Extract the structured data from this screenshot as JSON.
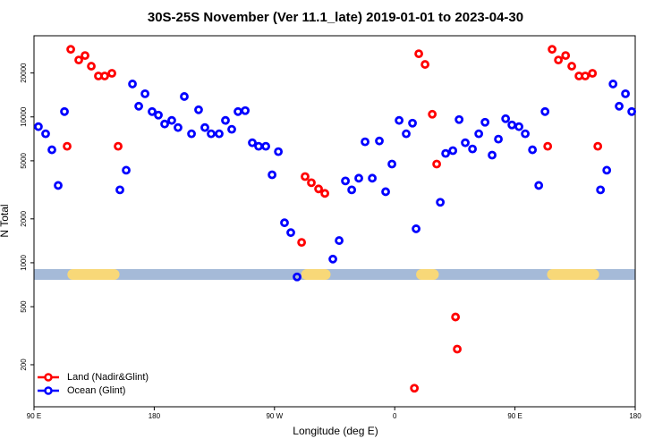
{
  "chart_data": {
    "type": "scatter",
    "title": "30S-25S November (Ver 11.1_late)   2019-01-01 to 2023-04-30",
    "x_label": "Longitude (deg E)",
    "y_label": "N Total",
    "log_y": true,
    "legend": "bottom-left",
    "xlim": [
      90,
      540
    ],
    "xticks": [
      {
        "value": 90,
        "label": "90 E"
      },
      {
        "value": 180,
        "label": "180"
      },
      {
        "value": 270,
        "label": "90 W"
      },
      {
        "value": 360,
        "label": "0"
      },
      {
        "value": 450,
        "label": "90 E"
      },
      {
        "value": 540,
        "label": "180"
      }
    ],
    "ylim": [
      103,
      36000
    ],
    "yticks": [
      200,
      500,
      1000,
      2000,
      5000,
      10000,
      20000
    ],
    "land_segments": [
      [
        115,
        154
      ],
      [
        290,
        312
      ],
      [
        376,
        393
      ],
      [
        474,
        513
      ]
    ],
    "band_color": "#a5bad8",
    "land_color": "#f8d878",
    "series": [
      {
        "name": "Land (Nadir&Glint)",
        "color": "#ff0000",
        "x": [
          114.8,
          117.5,
          123.5,
          128.2,
          132.9,
          138.2,
          142.9,
          148.3,
          153.0,
          290.3,
          292.9,
          297.6,
          303.0,
          307.7,
          374.7,
          378.0,
          382.7,
          388.1,
          391.4,
          405.5,
          406.8,
          474.5,
          477.8,
          482.5,
          487.9,
          492.5,
          497.9,
          502.6,
          508.0,
          512.0
        ],
        "values": [
          6290,
          29060,
          24550,
          26350,
          22270,
          19070,
          19070,
          19900,
          6290,
          1380,
          3900,
          3540,
          3210,
          2990,
          138,
          27100,
          22890,
          10430,
          4750,
          425,
          256,
          6290,
          29060,
          24550,
          26350,
          22270,
          19070,
          19070,
          19900,
          6290
        ]
      },
      {
        "name": "Ocean (Glint)",
        "color": "#0000ff",
        "x": [
          93.3,
          98.7,
          103.4,
          108.1,
          112.8,
          154.3,
          159.0,
          163.7,
          168.4,
          173.1,
          178.4,
          183.1,
          187.8,
          193.1,
          197.8,
          202.5,
          207.9,
          213.2,
          217.9,
          222.6,
          228.6,
          233.3,
          238.0,
          242.7,
          248.1,
          253.4,
          258.1,
          263.5,
          268.2,
          272.9,
          277.5,
          282.2,
          286.9,
          313.7,
          318.4,
          323.1,
          327.8,
          333.1,
          337.8,
          343.2,
          348.5,
          353.2,
          357.9,
          363.3,
          368.6,
          373.3,
          376.0,
          394.1,
          398.1,
          403.5,
          408.2,
          412.8,
          418.2,
          422.9,
          427.6,
          432.9,
          437.6,
          443.0,
          447.7,
          453.0,
          457.7,
          463.1,
          467.8,
          472.5,
          514.0,
          518.7,
          523.4,
          528.0,
          532.7,
          537.4
        ],
        "values": [
          8570,
          7660,
          5950,
          3390,
          10880,
          3160,
          4310,
          16820,
          11840,
          14410,
          10880,
          10290,
          8940,
          9460,
          8450,
          13800,
          7660,
          11190,
          8450,
          7660,
          7660,
          9460,
          8220,
          10880,
          11040,
          6650,
          6290,
          6290,
          4010,
          5780,
          1880,
          1610,
          800,
          1060,
          1420,
          3640,
          3160,
          3800,
          6750,
          3800,
          6840,
          3070,
          4750,
          9460,
          7660,
          9060,
          1710,
          2600,
          5620,
          5870,
          9590,
          6650,
          6030,
          7660,
          9190,
          5470,
          7040,
          9720,
          8810,
          8570,
          7660,
          5950,
          3390,
          10880,
          3160,
          4310,
          16820,
          11840,
          14410,
          10880
        ]
      }
    ]
  }
}
